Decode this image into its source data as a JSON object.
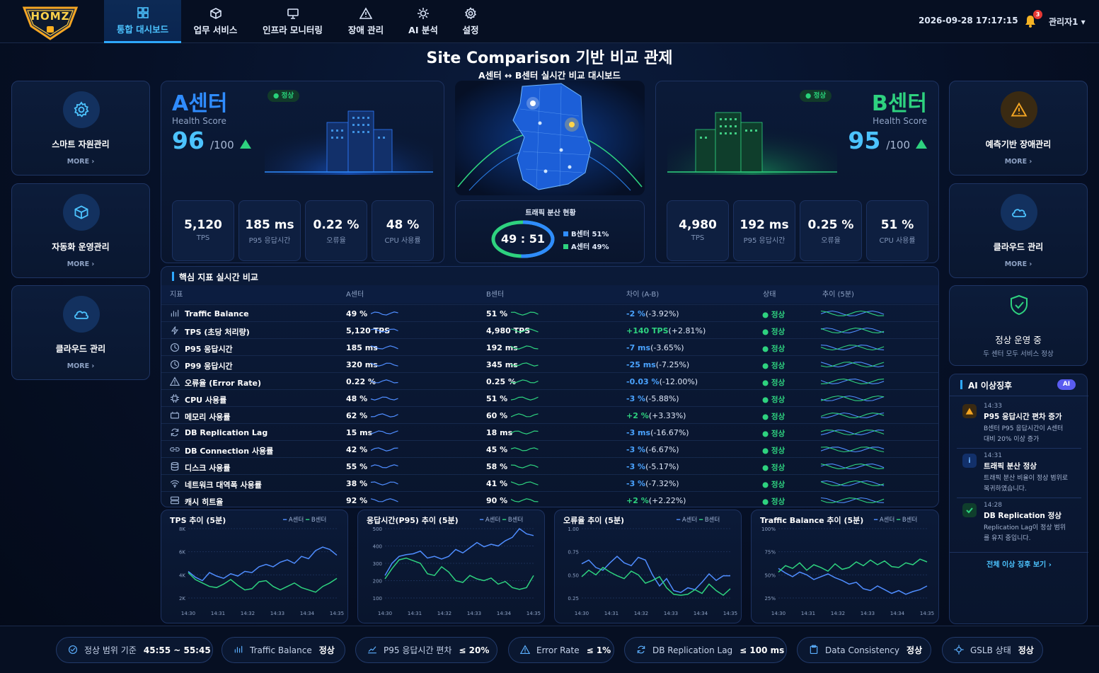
{
  "logo": {
    "text": "HOMZ"
  },
  "nav": [
    {
      "label": "통합 대시보드",
      "icon": "grid-icon",
      "active": true
    },
    {
      "label": "업무 서비스",
      "icon": "cube-icon"
    },
    {
      "label": "인프라 모니터링",
      "icon": "monitor-icon"
    },
    {
      "label": "장애 관리",
      "icon": "warning-icon"
    },
    {
      "label": "AI 분석",
      "icon": "ai-chip-icon"
    },
    {
      "label": "설정",
      "icon": "gear-icon"
    }
  ],
  "header": {
    "datetime": "2026-09-28 17:17:15",
    "notifications": "3",
    "user": "관리자1 ▾"
  },
  "page": {
    "title": "Site Comparison 기반 비교 관제",
    "subtitle": "A센터 ↔ B센터 실시간 비교 대시보드"
  },
  "left_cards": [
    {
      "label": "스마트 자원관리",
      "more": "MORE ›",
      "icon": "gear-icon"
    },
    {
      "label": "자동화 운영관리",
      "more": "MORE ›",
      "icon": "cube-icon"
    },
    {
      "label": "클라우드 관리",
      "more": "MORE ›",
      "icon": "cloud-icon"
    }
  ],
  "right_cards": [
    {
      "label": "예측기반 장애관리",
      "more": "MORE ›",
      "icon": "warning-icon"
    },
    {
      "label": "클라우드 관리",
      "more": "MORE ›",
      "icon": "cloud-icon"
    }
  ],
  "status_card": {
    "title": "정상 운영 중",
    "desc": "두 센터 모두 서비스 정상"
  },
  "center_a": {
    "name": "A센터",
    "health_label": "Health Score",
    "score": "96",
    "denom": "/100",
    "status": "정상",
    "accent": "#2f8cff",
    "metrics": [
      {
        "value": "5,120",
        "label": "TPS"
      },
      {
        "value": "185 ms",
        "label": "P95 응답시간"
      },
      {
        "value": "0.22 %",
        "label": "오류율"
      },
      {
        "value": "48 %",
        "label": "CPU 사용률"
      }
    ]
  },
  "center_b": {
    "name": "B센터",
    "health_label": "Health Score",
    "score": "95",
    "denom": "/100",
    "status": "정상",
    "accent": "#2ed27f",
    "metrics": [
      {
        "value": "4,980",
        "label": "TPS"
      },
      {
        "value": "192 ms",
        "label": "P95 응답시간"
      },
      {
        "value": "0.25 %",
        "label": "오류율"
      },
      {
        "value": "51 %",
        "label": "CPU 사용률"
      }
    ]
  },
  "traffic": {
    "title": "트래픽 분산 현황",
    "ratio": "49 : 51",
    "legend": [
      {
        "label": "B센터 51%",
        "color": "#2f8cff"
      },
      {
        "label": "A센터 49%",
        "color": "#2ed27f"
      }
    ],
    "b_share": 51,
    "a_share": 49
  },
  "table": {
    "title": "핵심 지표 실시간 비교",
    "headers": [
      "지표",
      "A센터",
      "B센터",
      "차이 (A-B)",
      "상태",
      "추이 (5분)"
    ],
    "rows": [
      {
        "name": "Traffic Balance",
        "icon": "bar-chart-icon",
        "a": "49 %",
        "b": "51 %",
        "diff_val": "-2 %",
        "diff_pct": "(-3.92%)",
        "sign": "neg",
        "status": "● 정상"
      },
      {
        "name": "TPS (초당 처리량)",
        "icon": "bolt-icon",
        "a": "5,120 TPS",
        "b": "4,980 TPS",
        "diff_val": "+140 TPS",
        "diff_pct": "(+2.81%)",
        "sign": "pos",
        "status": "● 정상"
      },
      {
        "name": "P95 응답시간",
        "icon": "clock-icon",
        "a": "185 ms",
        "b": "192 ms",
        "diff_val": "-7 ms",
        "diff_pct": "(-3.65%)",
        "sign": "neg",
        "status": "● 정상"
      },
      {
        "name": "P99 응답시간",
        "icon": "clock-icon",
        "a": "320 ms",
        "b": "345 ms",
        "diff_val": "-25 ms",
        "diff_pct": "(-7.25%)",
        "sign": "neg",
        "status": "● 정상"
      },
      {
        "name": "오류율 (Error Rate)",
        "icon": "warning-icon",
        "a": "0.22 %",
        "b": "0.25 %",
        "diff_val": "-0.03 %",
        "diff_pct": "(-12.00%)",
        "sign": "neg",
        "status": "● 정상"
      },
      {
        "name": "CPU 사용률",
        "icon": "cpu-icon",
        "a": "48 %",
        "b": "51 %",
        "diff_val": "-3 %",
        "diff_pct": "(-5.88%)",
        "sign": "neg",
        "status": "● 정상"
      },
      {
        "name": "메모리 사용률",
        "icon": "memory-icon",
        "a": "62 %",
        "b": "60 %",
        "diff_val": "+2 %",
        "diff_pct": "(+3.33%)",
        "sign": "pos",
        "status": "● 정상"
      },
      {
        "name": "DB Replication Lag",
        "icon": "sync-icon",
        "a": "15 ms",
        "b": "18 ms",
        "diff_val": "-3 ms",
        "diff_pct": "(-16.67%)",
        "sign": "neg",
        "status": "● 정상"
      },
      {
        "name": "DB Connection 사용률",
        "icon": "link-icon",
        "a": "42 %",
        "b": "45 %",
        "diff_val": "-3 %",
        "diff_pct": "(-6.67%)",
        "sign": "neg",
        "status": "● 정상"
      },
      {
        "name": "디스크 사용률",
        "icon": "database-icon",
        "a": "55 %",
        "b": "58 %",
        "diff_val": "-3 %",
        "diff_pct": "(-5.17%)",
        "sign": "neg",
        "status": "● 정상"
      },
      {
        "name": "네트워크 대역폭 사용률",
        "icon": "wifi-icon",
        "a": "38 %",
        "b": "41 %",
        "diff_val": "-3 %",
        "diff_pct": "(-7.32%)",
        "sign": "neg",
        "status": "● 정상"
      },
      {
        "name": "캐시 히트율",
        "icon": "server-icon",
        "a": "92 %",
        "b": "90 %",
        "diff_val": "+2 %",
        "diff_pct": "(+2.22%)",
        "sign": "pos",
        "status": "● 정상"
      }
    ]
  },
  "chart_data": [
    {
      "type": "line",
      "title": "TPS 추이 (5분)",
      "legend": [
        "A센터",
        "B센터"
      ],
      "ylim": [
        2000,
        8000
      ],
      "yticks": [
        "8K",
        "6K",
        "4K",
        "2K"
      ],
      "xticks": [
        "14:30",
        "14:31",
        "14:32",
        "14:33",
        "14:34",
        "14:35"
      ],
      "series": [
        {
          "name": "A센터",
          "color": "#4f8dff",
          "values": [
            4300,
            3800,
            3500,
            4200,
            3900,
            3700,
            4100,
            3900,
            4300,
            4200,
            4700,
            4900,
            4700,
            5100,
            5300,
            5000,
            5600,
            5400,
            6100,
            6400,
            6200,
            5700
          ]
        },
        {
          "name": "B센터",
          "color": "#2ed27f",
          "values": [
            4200,
            3600,
            3300,
            3000,
            2900,
            3200,
            3600,
            3100,
            2700,
            2800,
            3400,
            3500,
            3000,
            2700,
            3000,
            3300,
            2900,
            2700,
            2500,
            3000,
            3300,
            3700
          ]
        }
      ]
    },
    {
      "type": "line",
      "title": "응답시간(P95) 추이 (5분)",
      "legend": [
        "A센터",
        "B센터"
      ],
      "ylim": [
        100,
        500
      ],
      "yticks": [
        "500",
        "400",
        "300",
        "200",
        "100"
      ],
      "xticks": [
        "14:30",
        "14:31",
        "14:32",
        "14:33",
        "14:34",
        "14:35"
      ],
      "series": [
        {
          "name": "A센터",
          "color": "#4f8dff",
          "values": [
            230,
            300,
            340,
            350,
            355,
            370,
            330,
            340,
            325,
            340,
            380,
            360,
            390,
            420,
            395,
            410,
            400,
            430,
            450,
            500,
            470,
            460
          ]
        },
        {
          "name": "B센터",
          "color": "#2ed27f",
          "values": [
            210,
            270,
            320,
            330,
            315,
            300,
            240,
            230,
            280,
            250,
            200,
            190,
            230,
            210,
            200,
            215,
            180,
            195,
            160,
            150,
            160,
            230
          ]
        }
      ]
    },
    {
      "type": "line",
      "title": "오류율 추이 (5분)",
      "legend": [
        "A센터",
        "B센터"
      ],
      "ylim": [
        0.25,
        1.0
      ],
      "yticks": [
        "1.00",
        "0.75",
        "0.50",
        "0.25"
      ],
      "xticks": [
        "14:30",
        "14:31",
        "14:32",
        "14:33",
        "14:34",
        "14:35"
      ],
      "series": [
        {
          "name": "A센터",
          "color": "#4f8dff",
          "values": [
            0.62,
            0.66,
            0.58,
            0.55,
            0.63,
            0.7,
            0.63,
            0.6,
            0.69,
            0.66,
            0.5,
            0.38,
            0.46,
            0.33,
            0.31,
            0.36,
            0.34,
            0.42,
            0.51,
            0.44,
            0.49,
            0.49
          ]
        },
        {
          "name": "B센터",
          "color": "#2ed27f",
          "values": [
            0.48,
            0.55,
            0.5,
            0.58,
            0.53,
            0.49,
            0.46,
            0.54,
            0.5,
            0.41,
            0.44,
            0.48,
            0.36,
            0.29,
            0.28,
            0.29,
            0.34,
            0.3,
            0.4,
            0.33,
            0.28,
            0.35
          ]
        }
      ]
    },
    {
      "type": "line",
      "title": "Traffic Balance 추이 (5분)",
      "legend": [
        "A센터",
        "B센터"
      ],
      "ylim": [
        25,
        100
      ],
      "yticks": [
        "100%",
        "75%",
        "50%",
        "25%"
      ],
      "xticks": [
        "14:30",
        "14:31",
        "14:32",
        "14:33",
        "14:34",
        "14:35"
      ],
      "series": [
        {
          "name": "A센터",
          "color": "#4f8dff",
          "values": [
            57,
            52,
            48,
            53,
            50,
            45,
            48,
            51,
            47,
            44,
            40,
            42,
            35,
            33,
            38,
            34,
            30,
            33,
            29,
            32,
            34,
            38
          ]
        },
        {
          "name": "B센터",
          "color": "#2ed27f",
          "values": [
            53,
            60,
            57,
            63,
            55,
            61,
            58,
            54,
            62,
            56,
            58,
            64,
            60,
            66,
            61,
            65,
            59,
            58,
            63,
            61,
            67,
            64
          ]
        }
      ]
    }
  ],
  "ai_panel": {
    "title": "AI 이상징후",
    "badge": "AI",
    "more": "전체 이상 징후 보기 ›",
    "items": [
      {
        "time": "14:33",
        "title": "P95 응답시간 편차 증가",
        "desc1": "B센터 P95 응답시간이 A센터",
        "desc2": "대비 20% 이상 증가",
        "kind": "warn"
      },
      {
        "time": "14:31",
        "title": "트래픽 분산 정상",
        "desc1": "트래픽 분산 비율이 정상 범위로",
        "desc2": "복귀하였습니다.",
        "kind": "info"
      },
      {
        "time": "14:28",
        "title": "DB Replication 정상",
        "desc1": "Replication Lag이 정상 범위",
        "desc2": "를 유지 중입니다.",
        "kind": "ok"
      }
    ]
  },
  "footer": [
    {
      "label": "정상 범위 기준",
      "value": "45:55 ~ 55:45",
      "icon": "check-circle-icon"
    },
    {
      "label": "Traffic Balance",
      "value": "정상",
      "icon": "bar-chart-icon"
    },
    {
      "label": "P95 응답시간 편차",
      "value": "≤ 20%",
      "icon": "line-chart-icon"
    },
    {
      "label": "Error Rate",
      "value": "≤ 1%",
      "icon": "warning-icon"
    },
    {
      "label": "DB Replication Lag",
      "value": "≤ 100 ms",
      "icon": "sync-icon"
    },
    {
      "label": "Data Consistency",
      "value": "정상",
      "icon": "clipboard-icon"
    },
    {
      "label": "GSLB 상태",
      "value": "정상",
      "icon": "target-icon"
    }
  ]
}
